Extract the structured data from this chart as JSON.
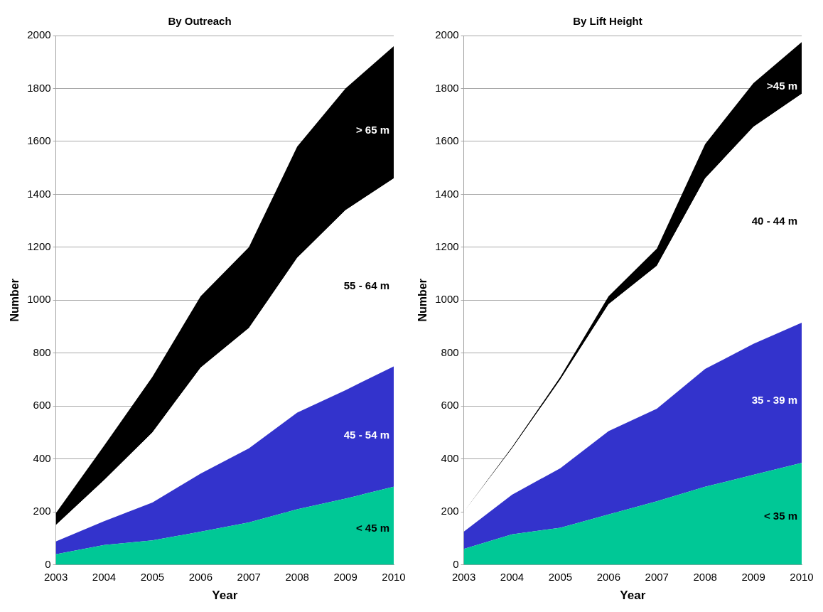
{
  "chart_data": [
    {
      "type": "area",
      "title": "By Outreach",
      "xlabel": "Year",
      "ylabel": "Number",
      "stacked": true,
      "grid": "y",
      "legend": false,
      "categories": [
        "2003",
        "2004",
        "2005",
        "2006",
        "2007",
        "2008",
        "2009",
        "2010"
      ],
      "ylim": [
        0,
        2000
      ],
      "yticks": [
        0,
        200,
        400,
        600,
        800,
        1000,
        1200,
        1400,
        1600,
        1800,
        2000
      ],
      "series": [
        {
          "name": "< 45 m",
          "color": "#00c896",
          "values": [
            40,
            75,
            92,
            125,
            160,
            210,
            250,
            295
          ]
        },
        {
          "name": "45 - 54 m",
          "color": "#3333cc",
          "values": [
            48,
            90,
            143,
            220,
            280,
            365,
            410,
            455
          ]
        },
        {
          "name": "55 - 64 m",
          "color": "#ffffff",
          "values": [
            62,
            155,
            265,
            400,
            455,
            585,
            680,
            710
          ]
        },
        {
          "name": "> 65 m",
          "color": "#000000",
          "values": [
            45,
            130,
            210,
            270,
            305,
            420,
            460,
            500
          ]
        }
      ]
    },
    {
      "type": "area",
      "title": "By Lift Height",
      "xlabel": "Year",
      "ylabel": "Number",
      "stacked": true,
      "grid": "y",
      "legend": false,
      "categories": [
        "2003",
        "2004",
        "2005",
        "2006",
        "2007",
        "2008",
        "2009",
        "2010"
      ],
      "ylim": [
        0,
        2000
      ],
      "yticks": [
        0,
        200,
        400,
        600,
        800,
        1000,
        1200,
        1400,
        1600,
        1800,
        2000
      ],
      "series": [
        {
          "name": "< 35 m",
          "color": "#00c896",
          "values": [
            60,
            115,
            140,
            190,
            240,
            295,
            340,
            385
          ]
        },
        {
          "name": "35 - 39 m",
          "color": "#3333cc",
          "values": [
            65,
            150,
            225,
            315,
            350,
            445,
            495,
            530
          ]
        },
        {
          "name": "40 - 44 m",
          "color": "#ffffff",
          "values": [
            75,
            175,
            335,
            480,
            540,
            720,
            820,
            865
          ]
        },
        {
          "name": ">45 m",
          "color": "#000000",
          "values": [
            0,
            5,
            10,
            30,
            65,
            130,
            165,
            195
          ]
        }
      ]
    }
  ]
}
